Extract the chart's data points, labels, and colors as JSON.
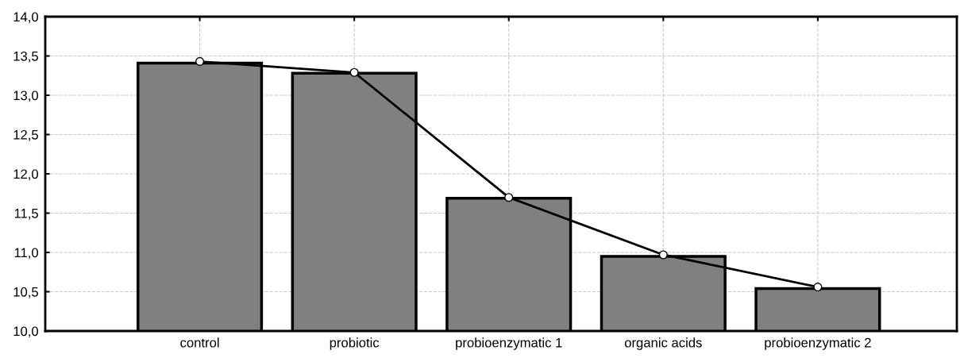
{
  "chart_data": {
    "type": "bar",
    "categories": [
      "control",
      "probiotic",
      "probioenzymatic 1",
      "organic acids",
      "probioenzymatic 2"
    ],
    "series": [
      {
        "color": "#808080",
        "values": [
          13.41,
          13.28,
          11.69,
          10.95,
          10.54
        ]
      },
      {
        "type": "line",
        "color": "#000000",
        "values": [
          13.43,
          13.29,
          11.7,
          10.97,
          10.56
        ],
        "marker": "circle",
        "line_style": "solid"
      }
    ],
    "ylim": [
      10.0,
      14.0
    ],
    "yticks": [
      {
        "value": 10.0,
        "label": "10,0"
      },
      {
        "value": 10.5,
        "label": "10,5"
      },
      {
        "value": 11.0,
        "label": "11,0"
      },
      {
        "value": 11.5,
        "label": "11,5"
      },
      {
        "value": 12.0,
        "label": "12,0"
      },
      {
        "value": 12.5,
        "label": "12,5"
      },
      {
        "value": 13.0,
        "label": "13,0"
      },
      {
        "value": 13.5,
        "label": "13,5"
      },
      {
        "value": 14.0,
        "label": "14,0"
      }
    ],
    "grid": true
  }
}
